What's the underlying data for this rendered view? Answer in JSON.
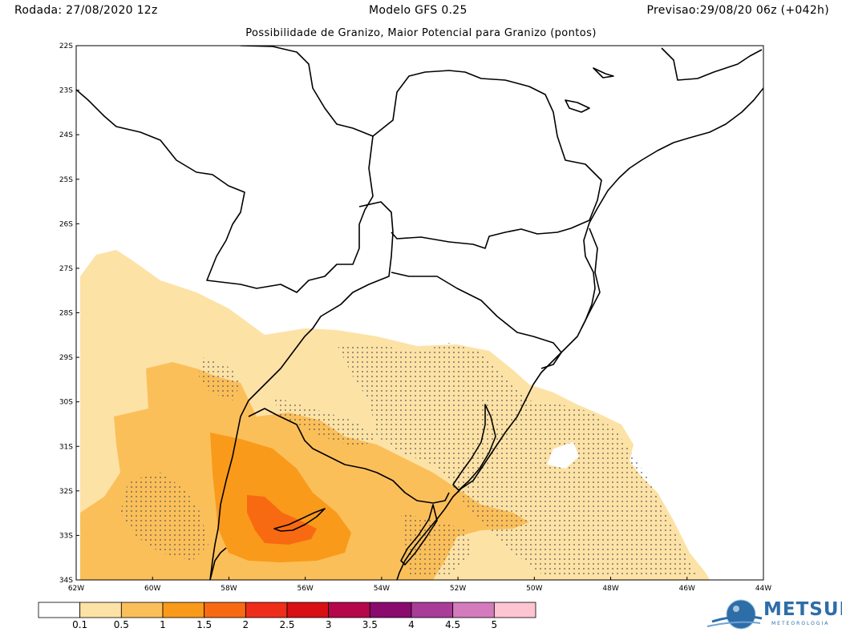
{
  "header": {
    "left": "Rodada: 27/08/2020 12z",
    "center": "Modelo GFS 0.25",
    "right": "Previsao:29/08/20 06z (+042h)"
  },
  "subtitle": "Possibilidade de Granizo, Maior Potencial para Granizo (pontos)",
  "axes": {
    "lat_labels": [
      "22S",
      "23S",
      "24S",
      "25S",
      "26S",
      "27S",
      "28S",
      "29S",
      "30S",
      "31S",
      "32S",
      "33S",
      "34S"
    ],
    "lon_labels": [
      "62W",
      "60W",
      "58W",
      "56W",
      "54W",
      "52W",
      "50W",
      "48W",
      "46W",
      "44W"
    ]
  },
  "colorbar": {
    "labels": [
      "0.1",
      "0.5",
      "1",
      "1.5",
      "2",
      "2.5",
      "3",
      "3.5",
      "4",
      "4.5",
      "5"
    ],
    "colors": [
      "#ffffff",
      "#fde2a6",
      "#fbbf5a",
      "#f99a1a",
      "#f86a12",
      "#ee2e1a",
      "#d81016",
      "#b5074a",
      "#8a0a6e",
      "#a83c98",
      "#d47bbd",
      "#fdc4d2"
    ]
  },
  "logo": {
    "name": "METSUL",
    "sub": "METEOROLOGIA"
  }
}
